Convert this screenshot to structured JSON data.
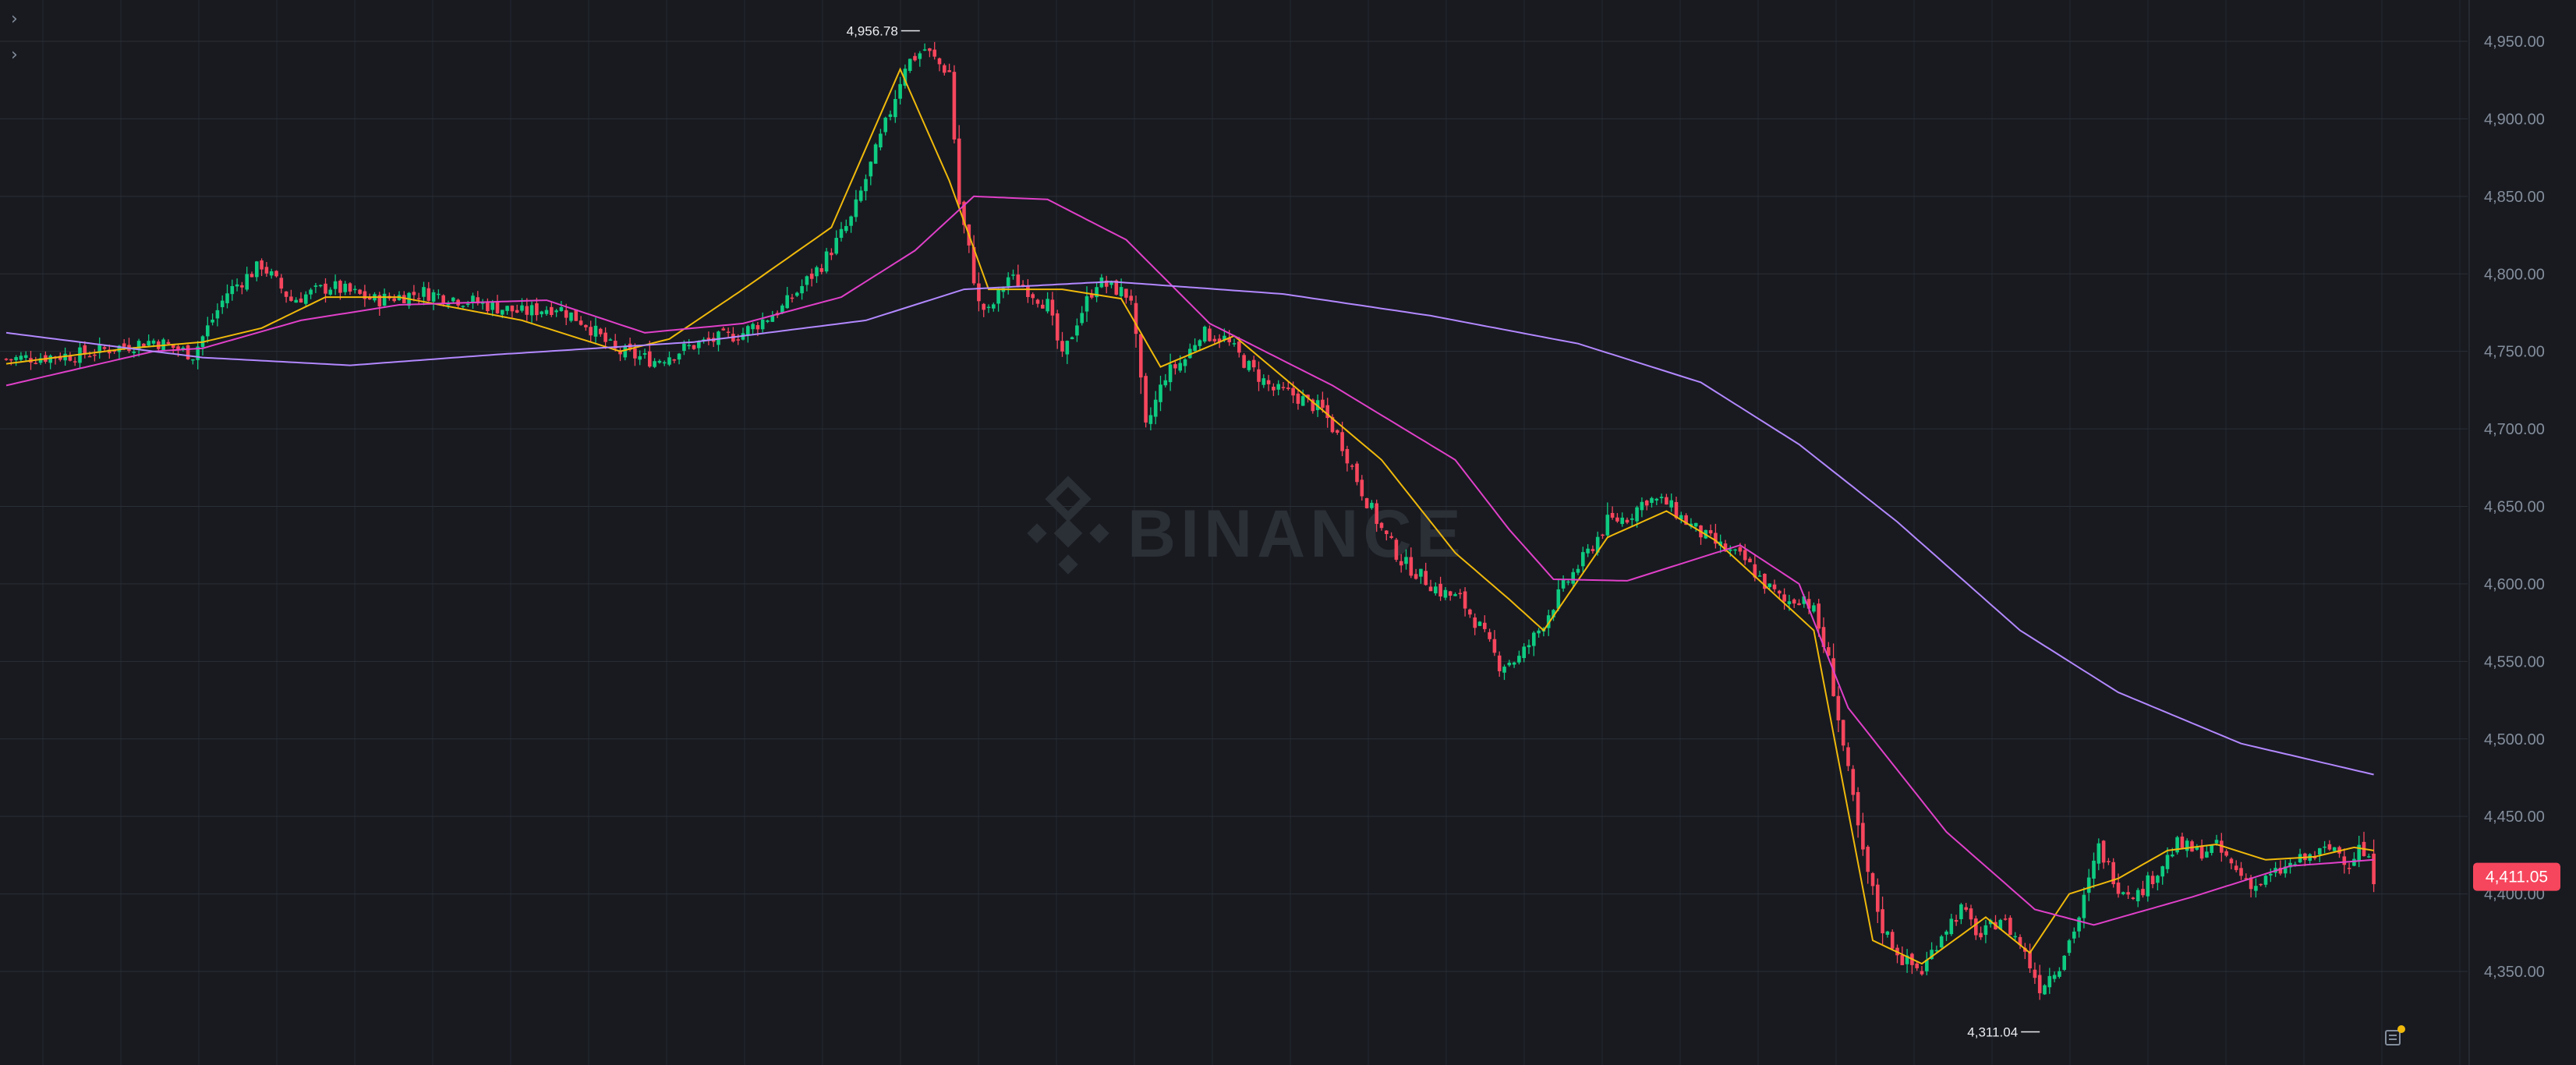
{
  "controls": {
    "expand_1": "›",
    "expand_2": "›"
  },
  "watermark": {
    "text": "BINANCE",
    "icon": "binance-logo-icon"
  },
  "price_tag": {
    "value": "4,411.05",
    "color": "#f6465d"
  },
  "high_marker": {
    "label": "4,956.78",
    "value": 4956.78
  },
  "low_marker": {
    "label": "4,311.04",
    "value": 4311.04
  },
  "colors": {
    "background": "#181a20",
    "grid": "#2b2f36",
    "up": "#0ecb81",
    "down": "#f6465d",
    "ma_short": "#f0b90b",
    "ma_mid": "#e040c8",
    "ma_long": "#b388ff",
    "axis_text": "#848e9c"
  },
  "corner_icon": "order-book-icon",
  "chart_data": {
    "type": "candlestick",
    "title": "",
    "grid": true,
    "yaxis": {
      "position": "right",
      "ylim": [
        4310,
        4960
      ],
      "ticks": [
        "4,950.00",
        "4,900.00",
        "4,850.00",
        "4,800.00",
        "4,750.00",
        "4,700.00",
        "4,650.00",
        "4,600.00",
        "4,550.00",
        "4,500.00",
        "4,450.00",
        "4,400.00",
        "4,350.00"
      ],
      "tick_values": [
        4950,
        4900,
        4850,
        4800,
        4750,
        4700,
        4650,
        4600,
        4550,
        4500,
        4450,
        4400,
        4350
      ]
    },
    "series": [
      {
        "line": "ma_short",
        "anchors": [
          [
            0,
            4742
          ],
          [
            25,
            4752
          ],
          [
            40,
            4756
          ],
          [
            52,
            4765
          ],
          [
            65,
            4785
          ],
          [
            80,
            4785
          ],
          [
            105,
            4770
          ],
          [
            125,
            4750
          ],
          [
            135,
            4758
          ],
          [
            150,
            4790
          ],
          [
            168,
            4830
          ],
          [
            182,
            4932
          ],
          [
            192,
            4860
          ],
          [
            200,
            4790
          ],
          [
            215,
            4790
          ],
          [
            227,
            4784
          ],
          [
            235,
            4740
          ],
          [
            250,
            4760
          ],
          [
            265,
            4720
          ],
          [
            280,
            4680
          ],
          [
            295,
            4620
          ],
          [
            306,
            4590
          ],
          [
            313,
            4570
          ],
          [
            326,
            4630
          ],
          [
            338,
            4647
          ],
          [
            348,
            4628
          ],
          [
            357,
            4602
          ],
          [
            368,
            4570
          ],
          [
            380,
            4370
          ],
          [
            390,
            4355
          ],
          [
            403,
            4385
          ],
          [
            412,
            4362
          ],
          [
            420,
            4400
          ],
          [
            430,
            4410
          ],
          [
            440,
            4428
          ],
          [
            450,
            4432
          ],
          [
            460,
            4422
          ],
          [
            470,
            4424
          ],
          [
            478,
            4430
          ],
          [
            482,
            4428
          ]
        ]
      },
      {
        "line": "ma_mid",
        "anchors": [
          [
            0,
            4728
          ],
          [
            30,
            4750
          ],
          [
            40,
            4752
          ],
          [
            60,
            4770
          ],
          [
            80,
            4780
          ],
          [
            110,
            4783
          ],
          [
            130,
            4762
          ],
          [
            150,
            4768
          ],
          [
            170,
            4785
          ],
          [
            185,
            4815
          ],
          [
            197,
            4850
          ],
          [
            212,
            4848
          ],
          [
            228,
            4822
          ],
          [
            245,
            4768
          ],
          [
            270,
            4728
          ],
          [
            295,
            4680
          ],
          [
            306,
            4635
          ],
          [
            315,
            4603
          ],
          [
            330,
            4602
          ],
          [
            343,
            4615
          ],
          [
            353,
            4625
          ],
          [
            365,
            4600
          ],
          [
            375,
            4520
          ],
          [
            395,
            4440
          ],
          [
            413,
            4390
          ],
          [
            425,
            4380
          ],
          [
            445,
            4398
          ],
          [
            465,
            4418
          ],
          [
            482,
            4422
          ]
        ]
      },
      {
        "line": "ma_long",
        "anchors": [
          [
            0,
            4762
          ],
          [
            40,
            4746
          ],
          [
            70,
            4741
          ],
          [
            100,
            4748
          ],
          [
            140,
            4756
          ],
          [
            175,
            4770
          ],
          [
            195,
            4790
          ],
          [
            225,
            4795
          ],
          [
            260,
            4787
          ],
          [
            290,
            4773
          ],
          [
            320,
            4755
          ],
          [
            345,
            4730
          ],
          [
            365,
            4690
          ],
          [
            385,
            4640
          ],
          [
            410,
            4570
          ],
          [
            430,
            4530
          ],
          [
            455,
            4497
          ],
          [
            482,
            4477
          ]
        ]
      }
    ],
    "candles": {
      "count": 483,
      "close_path": [
        [
          0,
          4745
        ],
        [
          15,
          4748
        ],
        [
          30,
          4757
        ],
        [
          38,
          4748
        ],
        [
          45,
          4788
        ],
        [
          52,
          4806
        ],
        [
          58,
          4783
        ],
        [
          66,
          4792
        ],
        [
          75,
          4783
        ],
        [
          85,
          4788
        ],
        [
          95,
          4782
        ],
        [
          105,
          4775
        ],
        [
          112,
          4779
        ],
        [
          118,
          4768
        ],
        [
          124,
          4750
        ],
        [
          132,
          4744
        ],
        [
          140,
          4754
        ],
        [
          150,
          4762
        ],
        [
          158,
          4778
        ],
        [
          166,
          4806
        ],
        [
          172,
          4835
        ],
        [
          176,
          4870
        ],
        [
          180,
          4905
        ],
        [
          183,
          4935
        ],
        [
          187,
          4945
        ],
        [
          190,
          4935
        ],
        [
          192,
          4930
        ],
        [
          194,
          4845
        ],
        [
          196,
          4815
        ],
        [
          198,
          4780
        ],
        [
          200,
          4775
        ],
        [
          204,
          4798
        ],
        [
          208,
          4790
        ],
        [
          212,
          4780
        ],
        [
          215,
          4745
        ],
        [
          218,
          4770
        ],
        [
          222,
          4795
        ],
        [
          226,
          4790
        ],
        [
          229,
          4785
        ],
        [
          232,
          4700
        ],
        [
          236,
          4735
        ],
        [
          240,
          4745
        ],
        [
          243,
          4762
        ],
        [
          248,
          4758
        ],
        [
          253,
          4740
        ],
        [
          258,
          4725
        ],
        [
          262,
          4722
        ],
        [
          268,
          4712
        ],
        [
          272,
          4690
        ],
        [
          276,
          4660
        ],
        [
          280,
          4635
        ],
        [
          284,
          4615
        ],
        [
          288,
          4605
        ],
        [
          292,
          4595
        ],
        [
          296,
          4590
        ],
        [
          300,
          4572
        ],
        [
          304,
          4548
        ],
        [
          308,
          4552
        ],
        [
          312,
          4570
        ],
        [
          317,
          4598
        ],
        [
          322,
          4620
        ],
        [
          326,
          4640
        ],
        [
          330,
          4643
        ],
        [
          334,
          4655
        ],
        [
          338,
          4652
        ],
        [
          342,
          4640
        ],
        [
          346,
          4630
        ],
        [
          350,
          4622
        ],
        [
          354,
          4615
        ],
        [
          358,
          4600
        ],
        [
          362,
          4588
        ],
        [
          366,
          4592
        ],
        [
          368,
          4582
        ],
        [
          371,
          4550
        ],
        [
          374,
          4495
        ],
        [
          378,
          4425
        ],
        [
          382,
          4378
        ],
        [
          386,
          4358
        ],
        [
          390,
          4350
        ],
        [
          394,
          4375
        ],
        [
          398,
          4390
        ],
        [
          402,
          4372
        ],
        [
          406,
          4385
        ],
        [
          410,
          4368
        ],
        [
          414,
          4340
        ],
        [
          418,
          4355
        ],
        [
          422,
          4385
        ],
        [
          426,
          4430
        ],
        [
          430,
          4405
        ],
        [
          434,
          4400
        ],
        [
          438,
          4415
        ],
        [
          442,
          4432
        ],
        [
          446,
          4427
        ],
        [
          450,
          4430
        ],
        [
          454,
          4415
        ],
        [
          458,
          4405
        ],
        [
          462,
          4413
        ],
        [
          466,
          4420
        ],
        [
          470,
          4425
        ],
        [
          474,
          4430
        ],
        [
          477,
          4420
        ],
        [
          479,
          4430
        ],
        [
          481,
          4420
        ],
        [
          482,
          4411
        ]
      ],
      "pattern_seed": 7
    }
  }
}
